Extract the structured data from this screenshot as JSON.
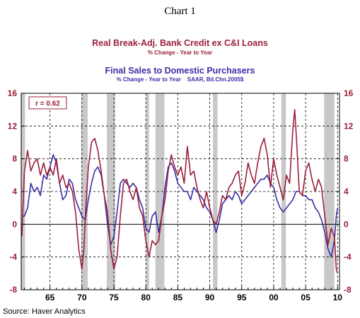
{
  "chart_number": "Chart 1",
  "title1": "Real Break-Adj. Bank Credit ex C&I Loans",
  "subtitle1": "% Change - Year to Year",
  "title2": "Final Sales to Domestic Purchasers",
  "subtitle2": "% Change - Year to Year    SAAR, Bil.Chn.2005$",
  "source": "Source: Haver Analytics",
  "colors": {
    "credit": "#9c1f3a",
    "sales": "#3a2ea6",
    "recession": "#c8c8c8"
  },
  "chart_data": {
    "type": "line",
    "annotation": "r = 0.62",
    "yticks": [
      -8,
      -4,
      0,
      4,
      8,
      12,
      16
    ],
    "ylim": [
      -8,
      16
    ],
    "xlim": [
      1960.5,
      2010.3
    ],
    "xticks": [
      {
        "year": 1965,
        "label": "65"
      },
      {
        "year": 1970,
        "label": "70"
      },
      {
        "year": 1975,
        "label": "75"
      },
      {
        "year": 1980,
        "label": "80"
      },
      {
        "year": 1985,
        "label": "85"
      },
      {
        "year": 1990,
        "label": "90"
      },
      {
        "year": 1995,
        "label": "95"
      },
      {
        "year": 2000,
        "label": "00"
      },
      {
        "year": 2005,
        "label": "05"
      },
      {
        "year": 2010,
        "label": "10"
      }
    ],
    "recessions": [
      [
        1960.3,
        1961.1
      ],
      [
        1969.9,
        1970.9
      ],
      [
        1973.9,
        1975.2
      ],
      [
        1980.0,
        1980.5
      ],
      [
        1981.5,
        1982.9
      ],
      [
        1990.5,
        1991.2
      ],
      [
        2001.2,
        2001.9
      ],
      [
        2007.9,
        2009.5
      ]
    ],
    "series": [
      {
        "key": "credit",
        "x": [
          1960.6,
          1961.0,
          1961.5,
          1962.0,
          1962.5,
          1963.0,
          1963.5,
          1964.0,
          1964.5,
          1965.0,
          1965.5,
          1966.0,
          1966.5,
          1967.0,
          1967.5,
          1968.0,
          1968.5,
          1969.0,
          1969.5,
          1970.0,
          1970.3,
          1970.6,
          1971.0,
          1971.5,
          1972.0,
          1972.5,
          1973.0,
          1973.5,
          1974.0,
          1974.5,
          1975.0,
          1975.5,
          1976.0,
          1976.5,
          1977.0,
          1977.5,
          1978.0,
          1978.5,
          1979.0,
          1979.5,
          1980.0,
          1980.5,
          1981.0,
          1981.5,
          1982.0,
          1982.5,
          1983.0,
          1983.5,
          1984.0,
          1984.5,
          1985.0,
          1985.5,
          1986.0,
          1986.5,
          1987.0,
          1987.5,
          1988.0,
          1988.5,
          1989.0,
          1989.5,
          1990.0,
          1990.5,
          1991.0,
          1991.5,
          1992.0,
          1992.5,
          1993.0,
          1993.5,
          1994.0,
          1994.5,
          1995.0,
          1995.5,
          1996.0,
          1996.5,
          1997.0,
          1997.5,
          1998.0,
          1998.5,
          1999.0,
          1999.5,
          2000.0,
          2000.5,
          2001.0,
          2001.5,
          2002.0,
          2002.5,
          2003.0,
          2003.3,
          2003.6,
          2004.0,
          2004.5,
          2005.0,
          2005.5,
          2006.0,
          2006.5,
          2007.0,
          2007.5,
          2008.0,
          2008.5,
          2009.0,
          2009.5,
          2009.8,
          2010.0
        ],
        "y": [
          -1.5,
          6.5,
          9.0,
          6.5,
          7.5,
          8.0,
          6.0,
          7.5,
          6.0,
          7.0,
          6.0,
          8.0,
          5.0,
          6.0,
          4.5,
          5.0,
          4.0,
          1.5,
          -3.0,
          -5.5,
          -3.0,
          2.0,
          7.0,
          10.0,
          10.5,
          9.0,
          6.5,
          3.5,
          1.5,
          -3.0,
          -5.5,
          -4.0,
          1.0,
          5.0,
          5.5,
          4.0,
          3.0,
          4.5,
          2.0,
          1.0,
          -2.0,
          -4.0,
          -2.0,
          -2.5,
          -2.0,
          1.0,
          3.0,
          6.5,
          8.5,
          7.0,
          6.0,
          7.0,
          5.0,
          9.5,
          6.0,
          6.5,
          4.5,
          3.0,
          2.0,
          4.0,
          2.0,
          0.5,
          0.0,
          1.5,
          3.5,
          3.0,
          4.5,
          5.0,
          6.0,
          6.5,
          3.5,
          5.0,
          7.5,
          6.0,
          5.0,
          7.5,
          9.5,
          10.5,
          8.5,
          4.5,
          8.0,
          6.0,
          4.5,
          3.0,
          6.0,
          5.0,
          11.5,
          14.0,
          10.0,
          4.0,
          3.5,
          6.5,
          7.5,
          5.5,
          4.0,
          5.5,
          4.5,
          1.0,
          -2.5,
          -0.5,
          -1.5,
          -5.5,
          -6.0
        ]
      },
      {
        "key": "sales",
        "x": [
          1960.6,
          1961.0,
          1961.5,
          1962.0,
          1962.5,
          1963.0,
          1963.5,
          1964.0,
          1964.5,
          1965.0,
          1965.5,
          1966.0,
          1966.5,
          1967.0,
          1967.5,
          1968.0,
          1968.5,
          1969.0,
          1969.5,
          1970.0,
          1970.5,
          1971.0,
          1971.5,
          1972.0,
          1972.5,
          1973.0,
          1973.5,
          1974.0,
          1974.5,
          1975.0,
          1975.5,
          1976.0,
          1976.5,
          1977.0,
          1977.5,
          1978.0,
          1978.5,
          1979.0,
          1979.5,
          1980.0,
          1980.5,
          1981.0,
          1981.5,
          1982.0,
          1982.5,
          1983.0,
          1983.5,
          1984.0,
          1984.5,
          1985.0,
          1985.5,
          1986.0,
          1986.5,
          1987.0,
          1987.5,
          1988.0,
          1988.5,
          1989.0,
          1989.5,
          1990.0,
          1990.5,
          1991.0,
          1991.5,
          1992.0,
          1992.5,
          1993.0,
          1993.5,
          1994.0,
          1994.5,
          1995.0,
          1995.5,
          1996.0,
          1996.5,
          1997.0,
          1997.5,
          1998.0,
          1998.5,
          1999.0,
          1999.5,
          2000.0,
          2000.5,
          2001.0,
          2001.5,
          2002.0,
          2002.5,
          2003.0,
          2003.5,
          2004.0,
          2004.5,
          2005.0,
          2005.5,
          2006.0,
          2006.5,
          2007.0,
          2007.5,
          2008.0,
          2008.5,
          2009.0,
          2009.5,
          2009.8,
          2010.0
        ],
        "y": [
          1.0,
          1.0,
          2.0,
          5.0,
          4.0,
          4.5,
          3.5,
          6.0,
          5.5,
          7.0,
          8.5,
          7.5,
          5.0,
          3.0,
          3.5,
          5.5,
          5.0,
          3.0,
          2.0,
          1.0,
          0.5,
          3.0,
          5.0,
          6.5,
          7.0,
          6.0,
          3.5,
          0.0,
          -2.5,
          -1.5,
          1.5,
          5.0,
          5.5,
          5.0,
          4.5,
          5.0,
          4.5,
          3.0,
          2.0,
          -0.5,
          -1.0,
          1.0,
          1.5,
          -1.0,
          1.0,
          4.5,
          7.0,
          7.5,
          6.5,
          5.0,
          4.5,
          4.0,
          4.0,
          3.0,
          4.5,
          4.0,
          3.5,
          3.0,
          2.0,
          1.5,
          0.5,
          -1.0,
          0.5,
          2.5,
          3.0,
          3.5,
          3.0,
          4.0,
          3.5,
          2.5,
          3.0,
          3.5,
          4.0,
          4.5,
          5.0,
          5.5,
          5.5,
          6.0,
          5.0,
          4.5,
          3.0,
          2.0,
          1.5,
          2.0,
          2.5,
          3.0,
          4.0,
          4.0,
          3.5,
          3.5,
          3.0,
          3.0,
          2.0,
          1.5,
          0.5,
          -1.0,
          -3.0,
          -4.0,
          -2.0,
          1.0,
          2.0
        ]
      }
    ]
  }
}
